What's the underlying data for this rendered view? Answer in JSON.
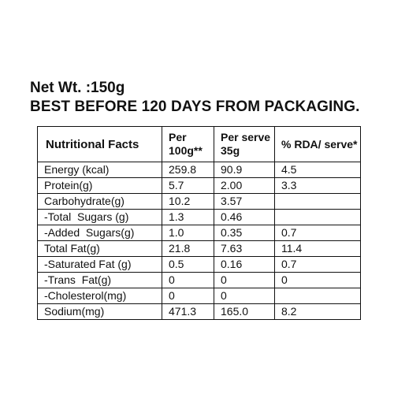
{
  "header": {
    "net_weight": "Net Wt. :150g",
    "best_before": "BEST BEFORE 120 DAYS FROM PACKAGING."
  },
  "table": {
    "columns": [
      "Nutritional Facts",
      "Per 100g**",
      "Per serve 35g",
      "% RDA/ serve*"
    ],
    "rows": [
      {
        "name": "Energy (kcal)",
        "per_100g": "259.8",
        "per_serve": "90.9",
        "rda": "4.5"
      },
      {
        "name": "Protein(g)",
        "per_100g": "5.7",
        "per_serve": "2.00",
        "rda": "3.3"
      },
      {
        "name": "Carbohydrate(g)",
        "per_100g": "10.2",
        "per_serve": "3.57",
        "rda": ""
      },
      {
        "name": "-Total  Sugars (g)",
        "per_100g": "1.3",
        "per_serve": "0.46",
        "rda": ""
      },
      {
        "name": "-Added  Sugars(g)",
        "per_100g": "1.0",
        "per_serve": "0.35",
        "rda": "0.7"
      },
      {
        "name": "Total Fat(g)",
        "per_100g": "21.8",
        "per_serve": "7.63",
        "rda": "11.4"
      },
      {
        "name": "-Saturated Fat (g)",
        "per_100g": "0.5",
        "per_serve": "0.16",
        "rda": "0.7"
      },
      {
        "name": "-Trans  Fat(g)",
        "per_100g": "0",
        "per_serve": "0",
        "rda": "0"
      },
      {
        "name": "-Cholesterol(mg)",
        "per_100g": "0",
        "per_serve": "0",
        "rda": ""
      },
      {
        "name": "Sodium(mg)",
        "per_100g": "471.3",
        "per_serve": "165.0",
        "rda": "8.2"
      }
    ]
  }
}
